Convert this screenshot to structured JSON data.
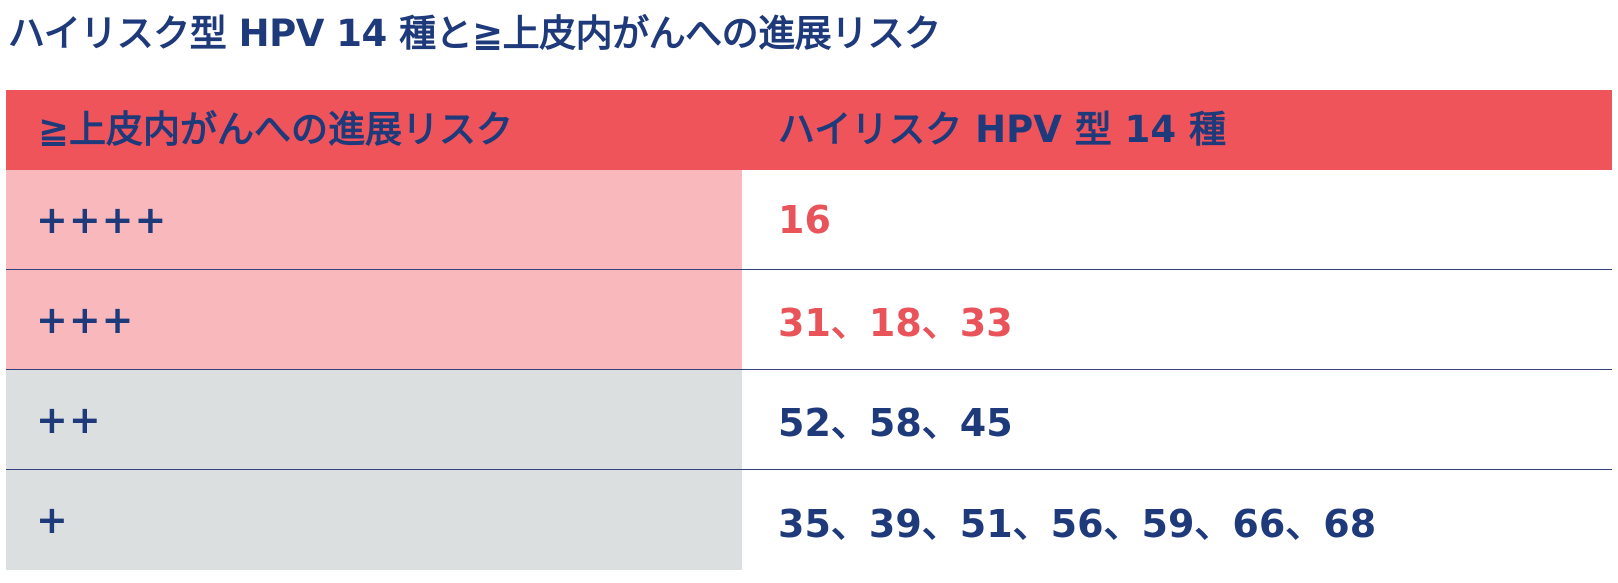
{
  "title": "ハイリスク型 HPV 14 種と≧上皮内がんへの進展リスク",
  "table": {
    "headers": {
      "risk": "≧上皮内がんへの進展リスク",
      "types": "ハイリスク HPV 型 14 種"
    },
    "rows": [
      {
        "risk": "++++",
        "types": "16"
      },
      {
        "risk": "+++",
        "types": "31、18、33"
      },
      {
        "risk": "++",
        "types": "52、58、45"
      },
      {
        "risk": "+",
        "types": "35、39、51、56、59、66、68"
      }
    ]
  },
  "colors": {
    "header_bg": "#ef545a",
    "high_risk_bg": "#f8b8bc",
    "low_risk_bg": "#dcdfdf",
    "high_risk_text": "#e8545a",
    "text_navy": "#1e3a7b"
  }
}
